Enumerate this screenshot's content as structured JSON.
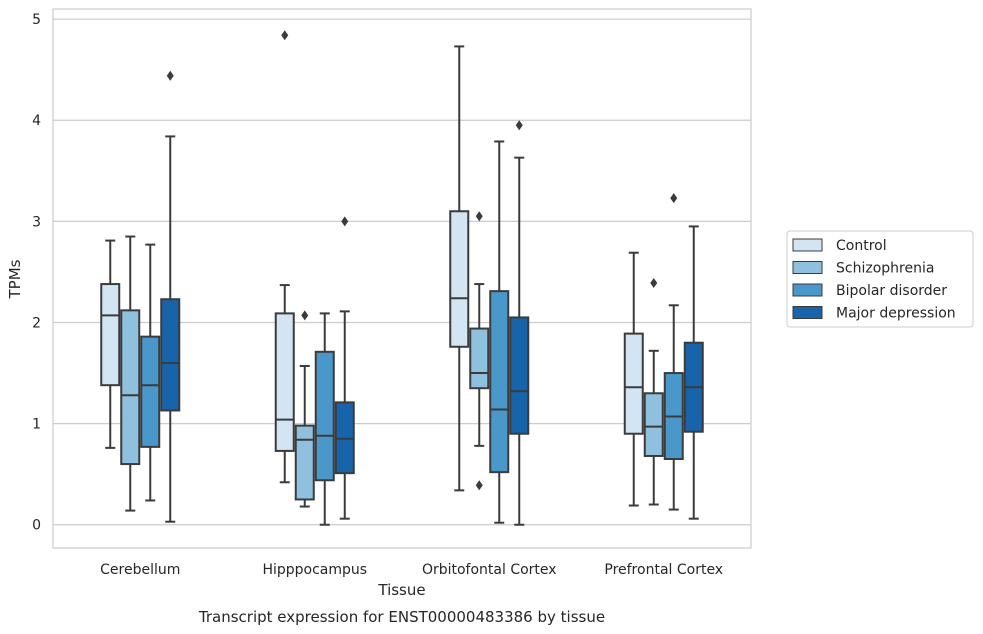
{
  "chart_data": {
    "type": "box",
    "xlabel": "Tissue",
    "ylabel": "TPMs",
    "caption": "Transcript expression for ENST00000483386 by tissue",
    "ylim": [
      -0.23,
      5.1
    ],
    "yticks": [
      0,
      1,
      2,
      3,
      4,
      5
    ],
    "grid": "y",
    "legend_position": "right",
    "categories": [
      "Cerebellum",
      "Hipppocampus",
      "Orbitofontal Cortex",
      "Prefrontal Cortex"
    ],
    "series": [
      {
        "name": "Control",
        "color": "#d3e4f3",
        "boxes": [
          {
            "whislo": 0.76,
            "q1": 1.38,
            "med": 2.07,
            "q3": 2.38,
            "whishi": 2.81,
            "fliers": []
          },
          {
            "whislo": 0.42,
            "q1": 0.73,
            "med": 1.04,
            "q3": 2.09,
            "whishi": 2.37,
            "fliers": [
              4.84
            ]
          },
          {
            "whislo": 0.34,
            "q1": 1.76,
            "med": 2.24,
            "q3": 3.1,
            "whishi": 4.73,
            "fliers": []
          },
          {
            "whislo": 0.19,
            "q1": 0.9,
            "med": 1.36,
            "q3": 1.89,
            "whishi": 2.69,
            "fliers": []
          }
        ]
      },
      {
        "name": "Schizophrenia",
        "color": "#8fc1de",
        "boxes": [
          {
            "whislo": 0.14,
            "q1": 0.6,
            "med": 1.28,
            "q3": 2.12,
            "whishi": 2.85,
            "fliers": []
          },
          {
            "whislo": 0.18,
            "q1": 0.25,
            "med": 0.84,
            "q3": 0.98,
            "whishi": 1.57,
            "fliers": [
              2.07
            ]
          },
          {
            "whislo": 0.78,
            "q1": 1.35,
            "med": 1.5,
            "q3": 1.94,
            "whishi": 2.38,
            "fliers": [
              3.05,
              0.39
            ]
          },
          {
            "whislo": 0.2,
            "q1": 0.68,
            "med": 0.97,
            "q3": 1.3,
            "whishi": 1.72,
            "fliers": [
              2.39
            ]
          }
        ]
      },
      {
        "name": "Bipolar disorder",
        "color": "#4a98c9",
        "boxes": [
          {
            "whislo": 0.24,
            "q1": 0.77,
            "med": 1.38,
            "q3": 1.86,
            "whishi": 2.77,
            "fliers": []
          },
          {
            "whislo": 0.0,
            "q1": 0.44,
            "med": 0.88,
            "q3": 1.71,
            "whishi": 2.09,
            "fliers": []
          },
          {
            "whislo": 0.02,
            "q1": 0.52,
            "med": 1.14,
            "q3": 2.31,
            "whishi": 3.79,
            "fliers": []
          },
          {
            "whislo": 0.15,
            "q1": 0.65,
            "med": 1.07,
            "q3": 1.5,
            "whishi": 2.17,
            "fliers": [
              3.23
            ]
          }
        ]
      },
      {
        "name": "Major depression",
        "color": "#1764ab",
        "boxes": [
          {
            "whislo": 0.03,
            "q1": 1.13,
            "med": 1.6,
            "q3": 2.23,
            "whishi": 3.84,
            "fliers": [
              4.44
            ]
          },
          {
            "whislo": 0.06,
            "q1": 0.51,
            "med": 0.85,
            "q3": 1.21,
            "whishi": 2.11,
            "fliers": [
              3.0
            ]
          },
          {
            "whislo": 0.0,
            "q1": 0.9,
            "med": 1.32,
            "q3": 2.05,
            "whishi": 3.63,
            "fliers": [
              3.95
            ]
          },
          {
            "whislo": 0.06,
            "q1": 0.92,
            "med": 1.36,
            "q3": 1.8,
            "whishi": 2.95,
            "fliers": []
          }
        ]
      }
    ]
  }
}
